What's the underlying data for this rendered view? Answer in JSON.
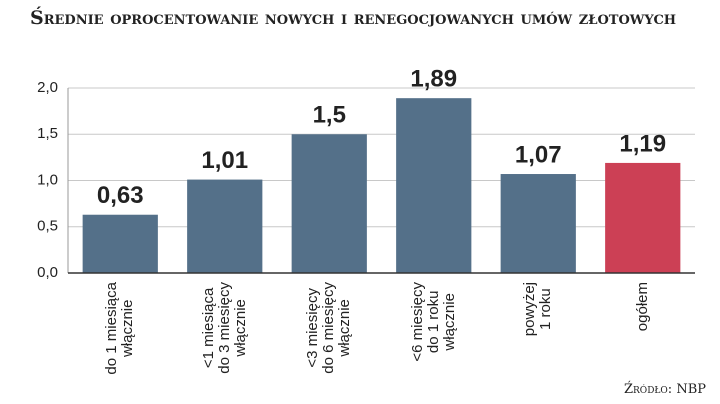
{
  "chart_data": {
    "type": "bar",
    "title": "Średnie oprocentowanie nowych i renegocjowanych umów złotowych",
    "source": "Źródło: NBP",
    "categories": [
      "do 1 miesiąca\nwłącznie",
      "<1 miesiąca\ndo 3 miesięcy\nwłącznie",
      "<3 miesięcy\ndo 6 miesięcy\nwłącznie",
      "<6 miesięcy\ndo 1 roku\nwłącznie",
      "powyżej\n1 roku",
      "ogółem"
    ],
    "values": [
      0.63,
      1.01,
      1.5,
      1.89,
      1.07,
      1.19
    ],
    "value_labels": [
      "0,63",
      "1,01",
      "1,5",
      "1,89",
      "1,07",
      "1,19"
    ],
    "colors": [
      "#547089",
      "#547089",
      "#547089",
      "#547089",
      "#547089",
      "#cc4055"
    ],
    "ylim": [
      0,
      2
    ],
    "yticks": [
      {
        "value": 0,
        "label": "0,0"
      },
      {
        "value": 0.5,
        "label": "0,5"
      },
      {
        "value": 1,
        "label": "1,0"
      },
      {
        "value": 1.5,
        "label": "1,5"
      },
      {
        "value": 2,
        "label": "2,0"
      }
    ],
    "grid": true
  }
}
